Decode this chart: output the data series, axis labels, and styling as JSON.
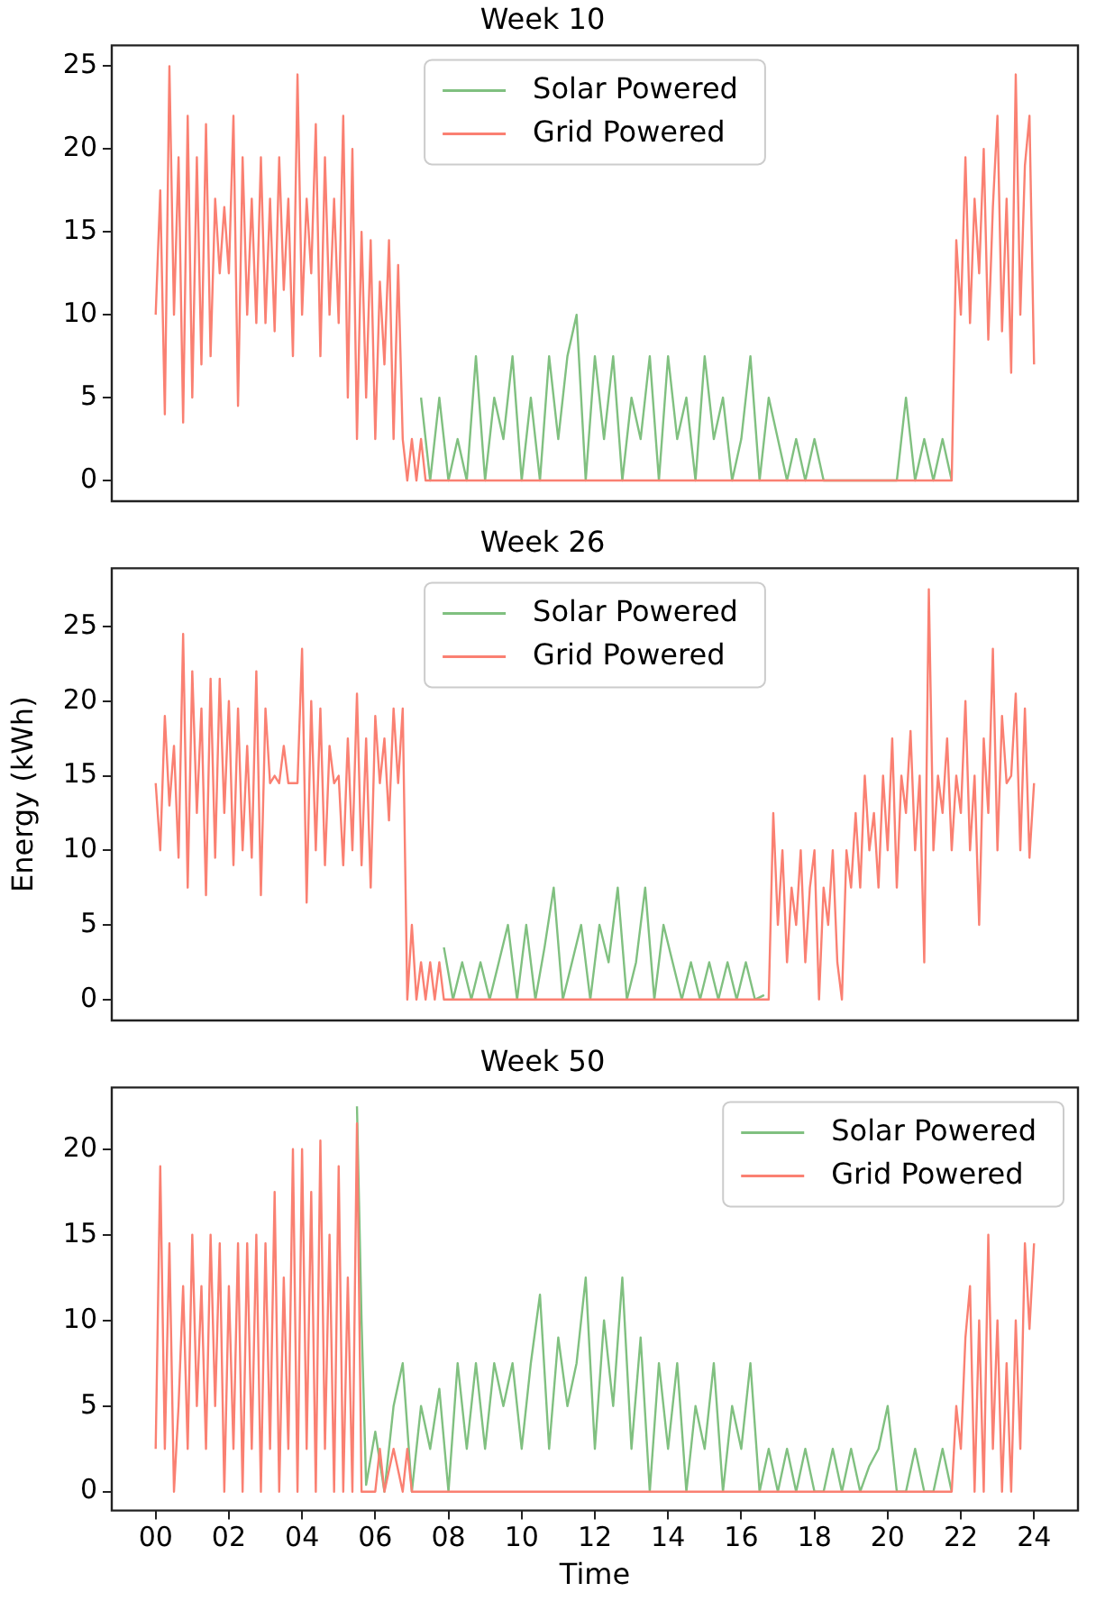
{
  "chart_data": [
    {
      "type": "line",
      "title": "Week 10",
      "xlim": [
        -1.2,
        25.2
      ],
      "ylim": [
        -1.25,
        26.25
      ],
      "yticks": [
        0,
        5,
        10,
        15,
        20,
        25
      ],
      "tick_labels": "y",
      "grid": false,
      "legend": "top",
      "series": [
        {
          "name": "Solar Powered",
          "color": "#80c080",
          "x": [
            7.25,
            7.5,
            7.75,
            8,
            8.25,
            8.5,
            8.75,
            9,
            9.25,
            9.5,
            9.75,
            10,
            10.25,
            10.5,
            10.75,
            11,
            11.25,
            11.5,
            11.75,
            12,
            12.25,
            12.5,
            12.75,
            13,
            13.25,
            13.5,
            13.75,
            14,
            14.25,
            14.5,
            14.75,
            15,
            15.25,
            15.5,
            15.75,
            16,
            16.25,
            16.5,
            16.75,
            17,
            17.25,
            17.5,
            17.75,
            18,
            18.25,
            18.5,
            18.75,
            19,
            19.25,
            19.5,
            19.75,
            20,
            20.25,
            20.5,
            20.75,
            21,
            21.25,
            21.5,
            21.75
          ],
          "values": [
            5,
            0,
            5,
            0,
            2.5,
            0,
            7.5,
            0,
            5,
            2.5,
            7.5,
            0,
            5,
            0,
            7.5,
            2.5,
            7.5,
            10,
            0,
            7.5,
            2.5,
            7.5,
            0,
            5,
            2.5,
            7.5,
            0,
            7.5,
            2.5,
            5,
            0,
            7.5,
            2.5,
            5,
            0,
            2.5,
            7.5,
            0,
            5,
            2.5,
            0,
            2.5,
            0,
            2.5,
            0,
            0,
            0,
            0,
            0,
            0,
            0,
            0,
            0,
            5,
            0,
            2.5,
            0,
            2.5,
            0
          ]
        },
        {
          "name": "Grid Powered",
          "color": "#fa8072",
          "x": [
            0,
            0.125,
            0.25,
            0.375,
            0.5,
            0.625,
            0.75,
            0.875,
            1,
            1.125,
            1.25,
            1.375,
            1.5,
            1.625,
            1.75,
            1.875,
            2,
            2.125,
            2.25,
            2.375,
            2.5,
            2.625,
            2.75,
            2.875,
            3,
            3.125,
            3.25,
            3.375,
            3.5,
            3.625,
            3.75,
            3.875,
            4,
            4.125,
            4.25,
            4.375,
            4.5,
            4.625,
            4.75,
            4.875,
            5,
            5.125,
            5.25,
            5.375,
            5.5,
            5.625,
            5.75,
            5.875,
            6,
            6.125,
            6.25,
            6.375,
            6.5,
            6.625,
            6.75,
            6.875,
            7,
            7.125,
            7.25,
            7.375,
            21.75,
            21.875,
            22,
            22.125,
            22.25,
            22.375,
            22.5,
            22.625,
            22.75,
            22.875,
            23,
            23.125,
            23.25,
            23.375,
            23.5,
            23.625,
            23.75,
            23.875,
            24
          ],
          "values": [
            10,
            17.5,
            4,
            25,
            10,
            19.5,
            3.5,
            22,
            5,
            19.5,
            7,
            21.5,
            7.5,
            17,
            12.5,
            16.5,
            12.5,
            22,
            4.5,
            19.5,
            10,
            17,
            9.5,
            19.5,
            9.5,
            17,
            9,
            19.5,
            11.5,
            17,
            7.5,
            24.5,
            10,
            17,
            12.5,
            21.5,
            7.5,
            19.5,
            10,
            17,
            9.5,
            22,
            5,
            20,
            2.5,
            15,
            5,
            14.5,
            2.5,
            12,
            7,
            14.5,
            2.5,
            13,
            2.5,
            0,
            2.5,
            0,
            2.5,
            0,
            0,
            14.5,
            10,
            19.5,
            9.5,
            17,
            12.5,
            20,
            8.5,
            16.5,
            22,
            9,
            17,
            6.5,
            24.5,
            10,
            19,
            22,
            7
          ]
        }
      ]
    },
    {
      "type": "line",
      "title": "Week 26",
      "ylabel": "Energy (kWh)",
      "xlim": [
        -1.2,
        25.2
      ],
      "ylim": [
        -1.4,
        28.9
      ],
      "yticks": [
        0,
        5,
        10,
        15,
        20,
        25
      ],
      "tick_labels": "y",
      "grid": false,
      "legend": "top",
      "series": [
        {
          "name": "Solar Powered",
          "color": "#80c080",
          "x": [
            7.875,
            8.125,
            8.375,
            8.625,
            8.875,
            9.125,
            9.375,
            9.625,
            9.875,
            10.125,
            10.375,
            10.625,
            10.875,
            11.125,
            11.375,
            11.625,
            11.875,
            12.125,
            12.375,
            12.625,
            12.875,
            13.125,
            13.375,
            13.625,
            13.875,
            14.125,
            14.375,
            14.625,
            14.875,
            15.125,
            15.375,
            15.625,
            15.875,
            16.125,
            16.375,
            16.625
          ],
          "values": [
            3.5,
            0,
            2.5,
            0,
            2.5,
            0,
            2.5,
            5,
            0,
            5,
            0,
            3.5,
            7.5,
            0,
            2.5,
            5,
            0,
            5,
            2.5,
            7.5,
            0,
            2.5,
            7.5,
            0,
            5,
            2.5,
            0,
            2.5,
            0,
            2.5,
            0,
            2.5,
            0,
            2.5,
            0,
            0.3
          ]
        },
        {
          "name": "Grid Powered",
          "color": "#fa8072",
          "x": [
            0,
            0.125,
            0.25,
            0.375,
            0.5,
            0.625,
            0.75,
            0.875,
            1,
            1.125,
            1.25,
            1.375,
            1.5,
            1.625,
            1.75,
            1.875,
            2,
            2.125,
            2.25,
            2.375,
            2.5,
            2.625,
            2.75,
            2.875,
            3,
            3.125,
            3.25,
            3.375,
            3.5,
            3.625,
            3.75,
            3.875,
            4,
            4.125,
            4.25,
            4.375,
            4.5,
            4.625,
            4.75,
            4.875,
            5,
            5.125,
            5.25,
            5.375,
            5.5,
            5.625,
            5.75,
            5.875,
            6,
            6.125,
            6.25,
            6.375,
            6.5,
            6.625,
            6.75,
            6.875,
            7,
            7.125,
            7.25,
            7.375,
            7.5,
            7.625,
            7.75,
            7.875,
            16.75,
            16.875,
            17,
            17.125,
            17.25,
            17.375,
            17.5,
            17.625,
            17.75,
            17.875,
            18,
            18.125,
            18.25,
            18.375,
            18.5,
            18.625,
            18.75,
            18.875,
            19,
            19.125,
            19.25,
            19.375,
            19.5,
            19.625,
            19.75,
            19.875,
            20,
            20.125,
            20.25,
            20.375,
            20.5,
            20.625,
            20.75,
            20.875,
            21,
            21.125,
            21.25,
            21.375,
            21.5,
            21.625,
            21.75,
            21.875,
            22,
            22.125,
            22.25,
            22.375,
            22.5,
            22.625,
            22.75,
            22.875,
            23,
            23.125,
            23.25,
            23.375,
            23.5,
            23.625,
            23.75,
            23.875,
            24
          ],
          "values": [
            14.5,
            10,
            19,
            13,
            17,
            9.5,
            24.5,
            7.5,
            22,
            12.5,
            19.5,
            7,
            21.5,
            9.5,
            21.5,
            12.5,
            20,
            9,
            19.5,
            10,
            17,
            9.5,
            22,
            7,
            19.5,
            14.5,
            15,
            14.5,
            17,
            14.5,
            14.5,
            14.5,
            23.5,
            6.5,
            20,
            10,
            19.5,
            9,
            17,
            14.5,
            15,
            9,
            17.5,
            10,
            20.5,
            9,
            17.5,
            7.5,
            19,
            14.5,
            17.5,
            12,
            19.5,
            14.5,
            19.5,
            0,
            5,
            0,
            2.5,
            0,
            2.5,
            0,
            2.5,
            0,
            0,
            12.5,
            5,
            10,
            2.5,
            7.5,
            5,
            10,
            2.5,
            7.5,
            10,
            0,
            7.5,
            5,
            10,
            2.5,
            0,
            10,
            7.5,
            12.5,
            7.5,
            15,
            10,
            12.5,
            7.5,
            15,
            10,
            17.5,
            7.5,
            15,
            12.5,
            18,
            10,
            15,
            2.5,
            27.5,
            10,
            15,
            12.5,
            17.5,
            10,
            15,
            12.5,
            20,
            10,
            15,
            5,
            17.5,
            12.5,
            23.5,
            10,
            19,
            14.5,
            15,
            20.5,
            10,
            19.5,
            9.5,
            14.5
          ]
        }
      ]
    },
    {
      "type": "line",
      "title": "Week 50",
      "xlabel": "Time",
      "xlim": [
        -1.2,
        25.2
      ],
      "ylim": [
        -1.1,
        23.6
      ],
      "xticks": [
        {
          "value": 0,
          "label": "00"
        },
        {
          "value": 2,
          "label": "02"
        },
        {
          "value": 4,
          "label": "04"
        },
        {
          "value": 6,
          "label": "06"
        },
        {
          "value": 8,
          "label": "08"
        },
        {
          "value": 10,
          "label": "10"
        },
        {
          "value": 12,
          "label": "12"
        },
        {
          "value": 14,
          "label": "14"
        },
        {
          "value": 16,
          "label": "16"
        },
        {
          "value": 18,
          "label": "18"
        },
        {
          "value": 20,
          "label": "20"
        },
        {
          "value": 22,
          "label": "22"
        },
        {
          "value": 24,
          "label": "24"
        }
      ],
      "yticks": [
        0,
        5,
        10,
        15,
        20
      ],
      "grid": false,
      "legend": "top right",
      "series": [
        {
          "name": "Solar Powered",
          "color": "#80c080",
          "x": [
            5.5,
            5.625,
            5.75,
            6,
            6.25,
            6.5,
            6.75,
            7,
            7.25,
            7.5,
            7.75,
            8,
            8.25,
            8.5,
            8.75,
            9,
            9.25,
            9.5,
            9.75,
            10,
            10.25,
            10.5,
            10.75,
            11,
            11.25,
            11.5,
            11.75,
            12,
            12.25,
            12.5,
            12.75,
            13,
            13.25,
            13.5,
            13.75,
            14,
            14.25,
            14.5,
            14.75,
            15,
            15.25,
            15.5,
            15.75,
            16,
            16.25,
            16.5,
            16.75,
            17,
            17.25,
            17.5,
            17.75,
            18,
            18.25,
            18.5,
            18.75,
            19,
            19.25,
            19.5,
            19.75,
            20,
            20.25,
            20.5,
            20.75,
            21,
            21.25,
            21.5,
            21.75
          ],
          "values": [
            22.5,
            10,
            0.4,
            3.5,
            0,
            5,
            7.5,
            0,
            5,
            2.5,
            6,
            0,
            7.5,
            2.5,
            7.5,
            2.5,
            7.5,
            5,
            7.5,
            2.5,
            7.5,
            11.5,
            2.5,
            9,
            5,
            7.5,
            12.5,
            2.5,
            10,
            5,
            12.5,
            2.5,
            9,
            0,
            7.5,
            2.5,
            7.5,
            0,
            5,
            2.5,
            7.5,
            0,
            5,
            2.5,
            7.5,
            0,
            2.5,
            0,
            2.5,
            0,
            2.5,
            0,
            0,
            2.5,
            0,
            2.5,
            0,
            1.5,
            2.5,
            5,
            0,
            0,
            2.5,
            0,
            0,
            2.5,
            0
          ]
        },
        {
          "name": "Grid Powered",
          "color": "#fa8072",
          "x": [
            0,
            0.125,
            0.25,
            0.375,
            0.5,
            0.625,
            0.75,
            0.875,
            1,
            1.125,
            1.25,
            1.375,
            1.5,
            1.625,
            1.75,
            1.875,
            2,
            2.125,
            2.25,
            2.375,
            2.5,
            2.625,
            2.75,
            2.875,
            3,
            3.125,
            3.25,
            3.375,
            3.5,
            3.625,
            3.75,
            3.875,
            4,
            4.125,
            4.25,
            4.375,
            4.5,
            4.625,
            4.75,
            4.875,
            5,
            5.125,
            5.25,
            5.375,
            5.5,
            5.625,
            6,
            6.125,
            6.25,
            6.5,
            6.75,
            6.875,
            7,
            21.75,
            21.875,
            22,
            22.125,
            22.25,
            22.375,
            22.5,
            22.625,
            22.75,
            22.875,
            23,
            23.125,
            23.25,
            23.375,
            23.5,
            23.625,
            23.75,
            23.875,
            24
          ],
          "values": [
            2.5,
            19,
            2.5,
            14.5,
            0,
            5,
            12,
            2.5,
            15,
            5,
            12,
            2.5,
            15,
            5,
            14.5,
            0,
            12,
            2.5,
            14.5,
            0,
            14.5,
            2.5,
            15,
            0,
            14.5,
            2.5,
            17.5,
            0,
            12.5,
            2.5,
            20,
            0,
            20,
            2.5,
            17.5,
            0,
            20.5,
            2.5,
            15,
            0,
            19,
            0,
            12.5,
            0,
            21.5,
            0,
            0,
            2.5,
            0,
            2.5,
            0,
            2.5,
            0,
            0,
            5,
            2.5,
            9,
            12,
            0,
            10,
            0,
            15,
            2.5,
            10,
            0,
            7.5,
            0,
            10,
            2.5,
            14.5,
            9.5,
            14.5
          ]
        }
      ]
    }
  ]
}
